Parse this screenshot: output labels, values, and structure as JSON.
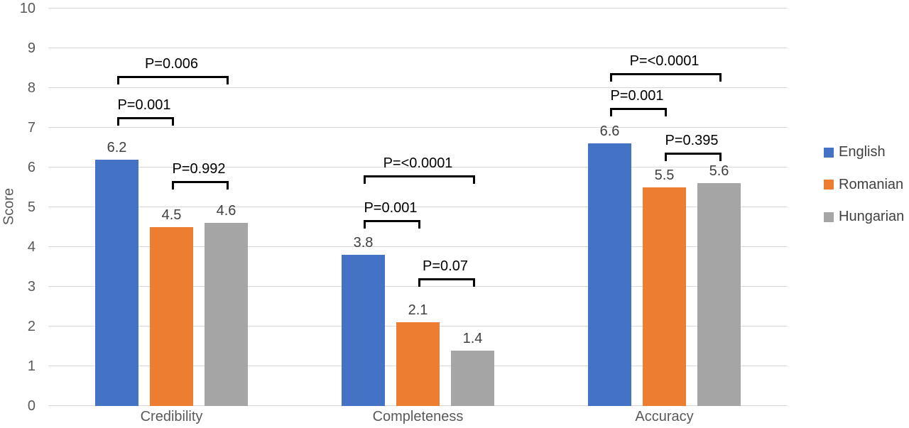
{
  "chart_data": {
    "type": "bar",
    "title": "",
    "xlabel": "",
    "ylabel": "Score",
    "ylim": [
      0,
      10
    ],
    "ytick_step": 1,
    "grid": true,
    "categories": [
      "Credibility",
      "Completeness",
      "Accuracy"
    ],
    "series": [
      {
        "name": "English",
        "color": "#4472C4",
        "values": [
          6.2,
          3.8,
          6.6
        ]
      },
      {
        "name": "Romanian",
        "color": "#ED7D31",
        "values": [
          4.5,
          2.1,
          5.5
        ]
      },
      {
        "name": "Hungarian",
        "color": "#A5A5A5",
        "values": [
          4.6,
          1.4,
          5.6
        ]
      }
    ],
    "data_labels": [
      [
        "6.2",
        "4.5",
        "4.6"
      ],
      [
        "3.8",
        "2.1",
        "1.4"
      ],
      [
        "6.6",
        "5.5",
        "5.6"
      ]
    ],
    "annotations": [
      {
        "category": 0,
        "from": 0,
        "to": 1,
        "label": "P=0.001",
        "y": 7.27
      },
      {
        "category": 0,
        "from": 0,
        "to": 2,
        "label": "P=0.006",
        "y": 8.3
      },
      {
        "category": 0,
        "from": 1,
        "to": 2,
        "label": "P=0.992",
        "y": 5.66
      },
      {
        "category": 1,
        "from": 0,
        "to": 2,
        "label": "P=<0.0001",
        "y": 5.8
      },
      {
        "category": 1,
        "from": 0,
        "to": 1,
        "label": "P=0.001",
        "y": 4.68
      },
      {
        "category": 1,
        "from": 1,
        "to": 2,
        "label": "P=0.07",
        "y": 3.21
      },
      {
        "category": 2,
        "from": 0,
        "to": 2,
        "label": "P=<0.0001",
        "y": 8.38
      },
      {
        "category": 2,
        "from": 0,
        "to": 1,
        "label": "P=0.001",
        "y": 7.5
      },
      {
        "category": 2,
        "from": 1,
        "to": 2,
        "label": "P=0.395",
        "y": 6.38
      }
    ],
    "legend": {
      "position": "right",
      "entries": [
        "English",
        "Romanian",
        "Hungarian"
      ]
    },
    "colors": {
      "grid": "#D9D9D9",
      "axis_text": "#595959",
      "data_label_text": "#404040",
      "annotation_text": "#000000"
    }
  }
}
